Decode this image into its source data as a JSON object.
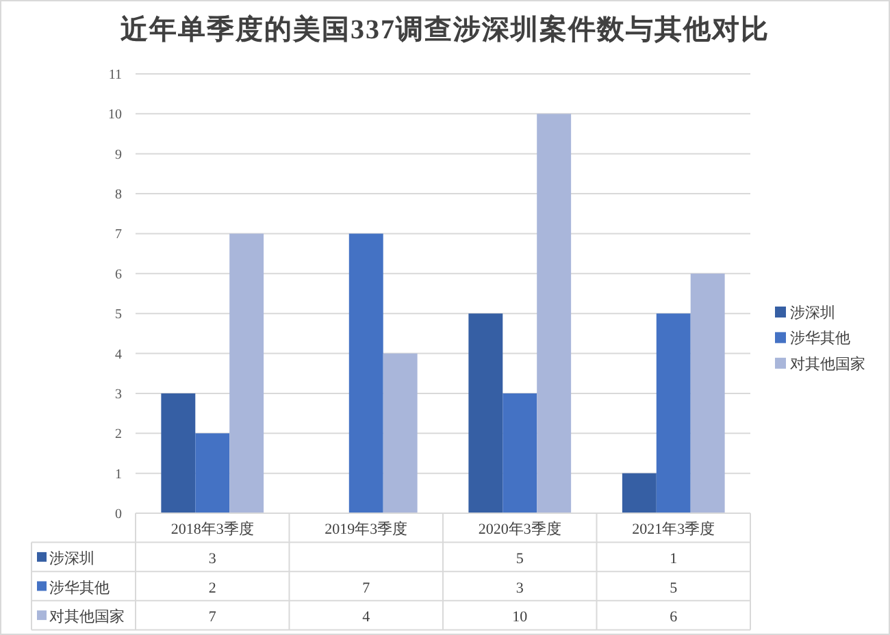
{
  "chart_data": {
    "type": "bar",
    "title": "近年单季度的美国337调查涉深圳案件数与其他对比",
    "categories": [
      "2018年3季度",
      "2019年3季度",
      "2020年3季度",
      "2021年3季度"
    ],
    "series": [
      {
        "name": "涉深圳",
        "color": "#365fa4",
        "values": [
          3,
          null,
          5,
          1
        ]
      },
      {
        "name": "涉华其他",
        "color": "#4472c4",
        "values": [
          2,
          7,
          3,
          5
        ]
      },
      {
        "name": "对其他国家",
        "color": "#a9b6da",
        "values": [
          7,
          4,
          10,
          6
        ]
      }
    ],
    "ylim": [
      0,
      11
    ],
    "yticks": [
      0,
      1,
      2,
      3,
      4,
      5,
      6,
      7,
      8,
      9,
      10,
      11
    ],
    "grid": "y",
    "legend": "right",
    "data_labels": true
  }
}
